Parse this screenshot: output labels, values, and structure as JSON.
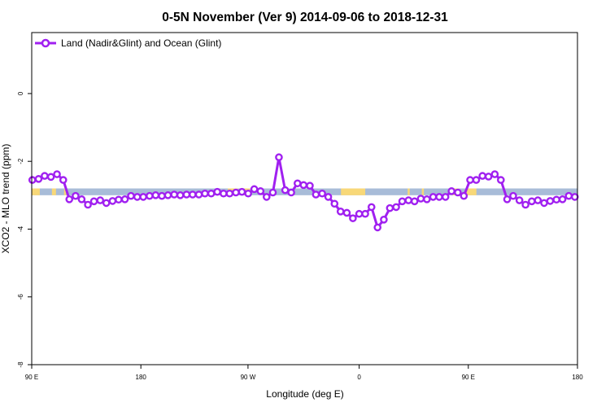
{
  "chart_data": {
    "type": "line",
    "title": "0-5N November (Ver 9)   2014-09-06 to 2018-12-31",
    "xlabel": "Longitude (deg E)",
    "ylabel": "XCO2 - MLO trend (ppm)",
    "xlim": [
      -45,
      225
    ],
    "ylim": [
      -8,
      1.8
    ],
    "x_ticks": [
      -45,
      9,
      62,
      117,
      171,
      225
    ],
    "x_tick_labels": [
      "90 E",
      "180",
      "90 W",
      "0",
      "90 E",
      "180"
    ],
    "y_ticks": [
      -8,
      -6,
      -4,
      -2,
      0
    ],
    "y_tick_labels": [
      "-8",
      "-6",
      "-4",
      "-2",
      "0"
    ],
    "legend_position": "top-left",
    "grid": false,
    "colors": {
      "series": "#a020f0",
      "ocean_band": "#a8bcd8",
      "land_band": "#f8d878"
    },
    "surface_band": {
      "y_range": [
        -3.0,
        -2.8
      ],
      "land_segments": [
        [
          -45,
          -41
        ],
        [
          -35,
          -33
        ],
        [
          -29,
          -28
        ],
        [
          52,
          57
        ],
        [
          60,
          63
        ],
        [
          108,
          120
        ],
        [
          141,
          142
        ],
        [
          148,
          149
        ],
        [
          163,
          166
        ],
        [
          170,
          175
        ]
      ]
    },
    "series": [
      {
        "name": "Land (Nadir&Glint) and Ocean (Glint)",
        "points": [
          [
            -44.7,
            -2.55
          ],
          [
            -41.6,
            -2.52
          ],
          [
            -38.6,
            -2.43
          ],
          [
            -35.5,
            -2.46
          ],
          [
            -32.5,
            -2.38
          ],
          [
            -29.4,
            -2.55
          ],
          [
            -26.4,
            -3.12
          ],
          [
            -23.3,
            -3.02
          ],
          [
            -20.3,
            -3.12
          ],
          [
            -17.2,
            -3.28
          ],
          [
            -14.2,
            -3.18
          ],
          [
            -11.1,
            -3.15
          ],
          [
            -8.1,
            -3.23
          ],
          [
            -5.0,
            -3.17
          ],
          [
            -2.0,
            -3.13
          ],
          [
            1.1,
            -3.12
          ],
          [
            4.1,
            -3.02
          ],
          [
            7.2,
            -3.05
          ],
          [
            10.2,
            -3.05
          ],
          [
            13.3,
            -3.02
          ],
          [
            16.3,
            -3.0
          ],
          [
            19.4,
            -3.02
          ],
          [
            22.4,
            -3.0
          ],
          [
            25.5,
            -2.98
          ],
          [
            28.5,
            -3.0
          ],
          [
            31.6,
            -2.98
          ],
          [
            34.6,
            -2.98
          ],
          [
            37.7,
            -2.98
          ],
          [
            40.7,
            -2.95
          ],
          [
            43.8,
            -2.95
          ],
          [
            46.8,
            -2.9
          ],
          [
            49.9,
            -2.95
          ],
          [
            52.9,
            -2.95
          ],
          [
            56.0,
            -2.92
          ],
          [
            59.0,
            -2.9
          ],
          [
            62.1,
            -2.95
          ],
          [
            65.1,
            -2.82
          ],
          [
            68.2,
            -2.88
          ],
          [
            71.2,
            -3.05
          ],
          [
            74.3,
            -2.92
          ],
          [
            77.3,
            -1.88
          ],
          [
            80.4,
            -2.85
          ],
          [
            83.4,
            -2.92
          ],
          [
            86.5,
            -2.65
          ],
          [
            89.5,
            -2.7
          ],
          [
            92.6,
            -2.72
          ],
          [
            95.6,
            -2.98
          ],
          [
            98.7,
            -2.95
          ],
          [
            101.7,
            -3.05
          ],
          [
            104.8,
            -3.25
          ],
          [
            107.8,
            -3.48
          ],
          [
            110.9,
            -3.52
          ],
          [
            113.9,
            -3.68
          ],
          [
            117.0,
            -3.55
          ],
          [
            120.0,
            -3.55
          ],
          [
            123.1,
            -3.35
          ],
          [
            126.1,
            -3.95
          ],
          [
            129.2,
            -3.72
          ],
          [
            132.2,
            -3.38
          ],
          [
            135.3,
            -3.35
          ],
          [
            138.3,
            -3.18
          ],
          [
            141.4,
            -3.15
          ],
          [
            144.4,
            -3.18
          ],
          [
            147.5,
            -3.1
          ],
          [
            150.5,
            -3.12
          ],
          [
            153.6,
            -3.05
          ],
          [
            156.6,
            -3.05
          ],
          [
            159.7,
            -3.05
          ],
          [
            162.7,
            -2.88
          ],
          [
            165.8,
            -2.92
          ],
          [
            168.8,
            -3.02
          ],
          [
            171.9,
            -2.55
          ],
          [
            174.9,
            -2.55
          ],
          [
            178.0,
            -2.43
          ],
          [
            181.0,
            -2.45
          ],
          [
            184.1,
            -2.38
          ],
          [
            187.1,
            -2.55
          ],
          [
            190.2,
            -3.12
          ],
          [
            193.2,
            -3.02
          ],
          [
            196.3,
            -3.15
          ],
          [
            199.3,
            -3.28
          ],
          [
            202.4,
            -3.18
          ],
          [
            205.4,
            -3.15
          ],
          [
            208.5,
            -3.23
          ],
          [
            211.5,
            -3.17
          ],
          [
            214.6,
            -3.13
          ],
          [
            217.6,
            -3.12
          ],
          [
            220.7,
            -3.02
          ],
          [
            223.7,
            -3.05
          ]
        ]
      }
    ]
  }
}
